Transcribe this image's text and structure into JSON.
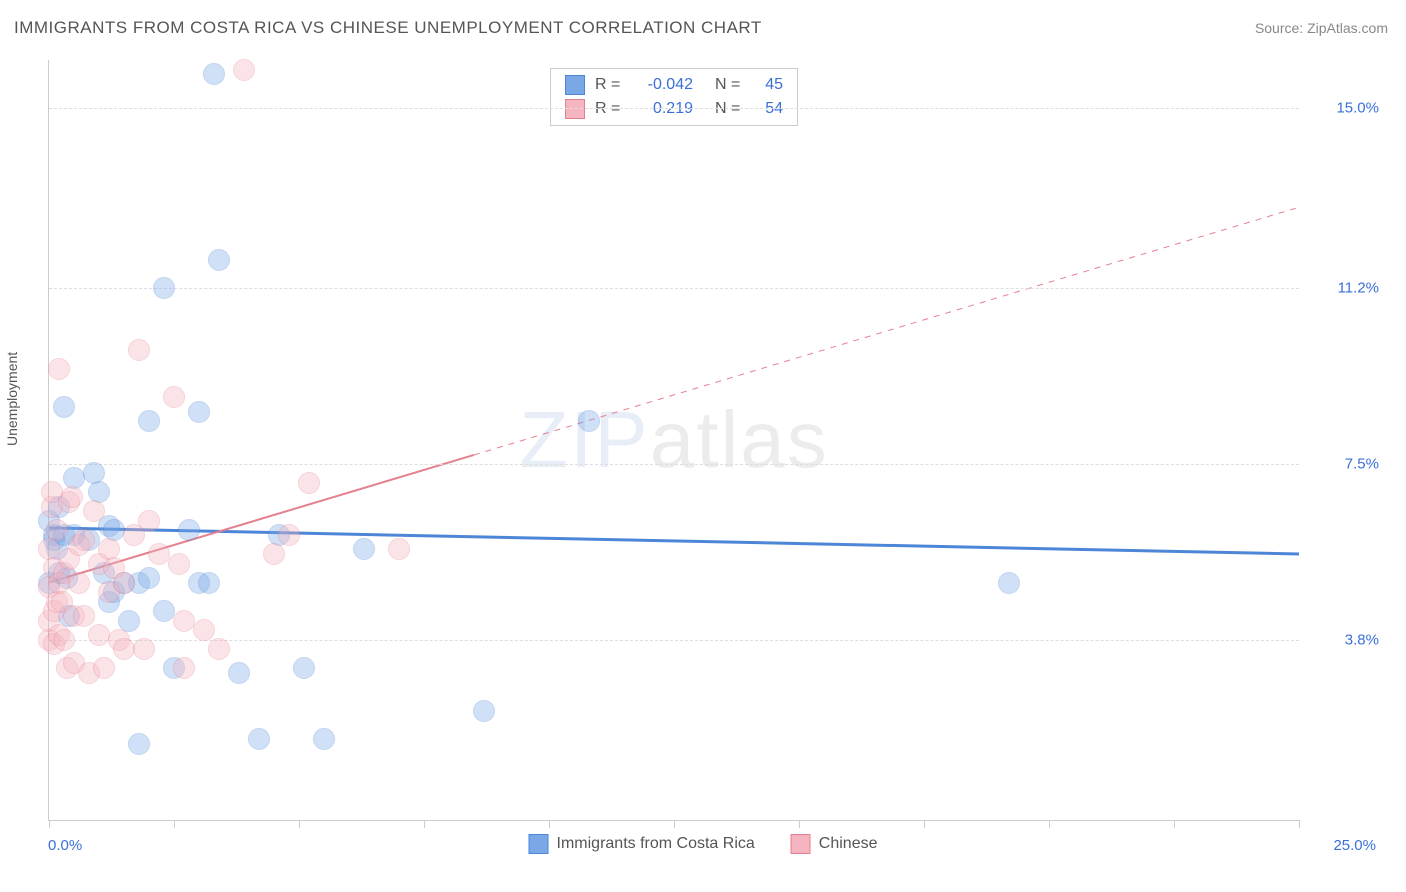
{
  "title": "IMMIGRANTS FROM COSTA RICA VS CHINESE UNEMPLOYMENT CORRELATION CHART",
  "source": "Source: ZipAtlas.com",
  "watermark": "ZIPatlas",
  "chart": {
    "type": "scatter",
    "xlim": [
      0.0,
      25.0
    ],
    "ylim": [
      0.0,
      16.0
    ],
    "x_left_label": "0.0%",
    "x_right_label": "25.0%",
    "x_ticks": [
      0,
      2.5,
      5,
      7.5,
      10,
      12.5,
      15,
      17.5,
      20,
      22.5,
      25
    ],
    "y_gridlines": [
      {
        "y": 3.8,
        "label": "3.8%"
      },
      {
        "y": 7.5,
        "label": "7.5%"
      },
      {
        "y": 11.2,
        "label": "11.2%"
      },
      {
        "y": 15.0,
        "label": "15.0%"
      }
    ],
    "ylabel": "Unemployment",
    "grid_color": "#dddddd",
    "axis_color": "#cccccc",
    "tick_label_color": "#3a6fd8",
    "marker_radius": 10,
    "marker_opacity": 0.35,
    "background_color": "#ffffff",
    "series": [
      {
        "name": "Immigrants from Costa Rica",
        "color": "#7aa8e6",
        "border": "#4d86d6",
        "R": "-0.042",
        "N": "45",
        "trend": {
          "x1": 0.0,
          "y1": 6.15,
          "x2": 25.0,
          "y2": 5.6,
          "dash_from_x": null,
          "width": 3
        },
        "points": [
          [
            0.0,
            5.0
          ],
          [
            0.0,
            6.3
          ],
          [
            0.1,
            6.0
          ],
          [
            0.1,
            5.9
          ],
          [
            0.15,
            5.7
          ],
          [
            0.2,
            6.6
          ],
          [
            0.2,
            5.2
          ],
          [
            0.3,
            6.0
          ],
          [
            0.3,
            8.7
          ],
          [
            0.35,
            5.1
          ],
          [
            0.4,
            4.3
          ],
          [
            0.5,
            7.2
          ],
          [
            0.5,
            6.0
          ],
          [
            0.8,
            5.9
          ],
          [
            0.9,
            7.3
          ],
          [
            1.0,
            6.9
          ],
          [
            1.1,
            5.2
          ],
          [
            1.2,
            6.2
          ],
          [
            1.2,
            4.6
          ],
          [
            1.3,
            6.1
          ],
          [
            1.3,
            4.8
          ],
          [
            1.5,
            5.0
          ],
          [
            1.6,
            4.2
          ],
          [
            1.8,
            1.6
          ],
          [
            1.8,
            5.0
          ],
          [
            2.0,
            8.4
          ],
          [
            2.0,
            5.1
          ],
          [
            2.3,
            4.4
          ],
          [
            2.3,
            11.2
          ],
          [
            2.5,
            3.2
          ],
          [
            2.8,
            6.1
          ],
          [
            3.0,
            8.6
          ],
          [
            3.0,
            5.0
          ],
          [
            3.2,
            5.0
          ],
          [
            3.3,
            15.7
          ],
          [
            3.4,
            11.8
          ],
          [
            3.8,
            3.1
          ],
          [
            4.2,
            1.7
          ],
          [
            4.6,
            6.0
          ],
          [
            5.1,
            3.2
          ],
          [
            5.5,
            1.7
          ],
          [
            6.3,
            5.7
          ],
          [
            8.7,
            2.3
          ],
          [
            10.8,
            8.4
          ],
          [
            19.2,
            5.0
          ]
        ]
      },
      {
        "name": "Chinese",
        "color": "#f5b5c0",
        "border": "#e5808f",
        "R": "0.219",
        "N": "54",
        "trend": {
          "x1": 0.0,
          "y1": 5.0,
          "x2": 25.0,
          "y2": 12.9,
          "dash_from_x": 8.5,
          "width": 2
        },
        "points": [
          [
            0.0,
            3.8
          ],
          [
            0.0,
            4.9
          ],
          [
            0.0,
            4.2
          ],
          [
            0.0,
            5.7
          ],
          [
            0.05,
            6.6
          ],
          [
            0.05,
            6.9
          ],
          [
            0.1,
            4.4
          ],
          [
            0.1,
            5.3
          ],
          [
            0.1,
            3.7
          ],
          [
            0.15,
            4.6
          ],
          [
            0.15,
            6.1
          ],
          [
            0.2,
            9.5
          ],
          [
            0.2,
            3.9
          ],
          [
            0.2,
            5.0
          ],
          [
            0.25,
            4.6
          ],
          [
            0.3,
            3.8
          ],
          [
            0.3,
            5.2
          ],
          [
            0.35,
            3.2
          ],
          [
            0.4,
            6.7
          ],
          [
            0.4,
            5.5
          ],
          [
            0.45,
            6.8
          ],
          [
            0.5,
            3.3
          ],
          [
            0.5,
            4.3
          ],
          [
            0.6,
            5.0
          ],
          [
            0.6,
            5.8
          ],
          [
            0.7,
            4.3
          ],
          [
            0.7,
            5.9
          ],
          [
            0.8,
            3.1
          ],
          [
            0.9,
            6.5
          ],
          [
            1.0,
            3.9
          ],
          [
            1.0,
            5.4
          ],
          [
            1.1,
            3.2
          ],
          [
            1.2,
            5.7
          ],
          [
            1.2,
            4.8
          ],
          [
            1.3,
            5.3
          ],
          [
            1.4,
            3.8
          ],
          [
            1.5,
            5.0
          ],
          [
            1.5,
            3.6
          ],
          [
            1.7,
            6.0
          ],
          [
            1.8,
            9.9
          ],
          [
            1.9,
            3.6
          ],
          [
            2.0,
            6.3
          ],
          [
            2.2,
            5.6
          ],
          [
            2.5,
            8.9
          ],
          [
            2.6,
            5.4
          ],
          [
            2.7,
            3.2
          ],
          [
            2.7,
            4.2
          ],
          [
            3.1,
            4.0
          ],
          [
            3.4,
            3.6
          ],
          [
            3.9,
            15.8
          ],
          [
            4.5,
            5.6
          ],
          [
            4.8,
            6.0
          ],
          [
            5.2,
            7.1
          ],
          [
            7.0,
            5.7
          ]
        ]
      }
    ],
    "legend_top_labels": {
      "R": "R =",
      "N": "N ="
    },
    "bottom_legend": [
      {
        "label": "Immigrants from Costa Rica",
        "color": "#7aa8e6",
        "border": "#4d86d6"
      },
      {
        "label": "Chinese",
        "color": "#f5b5c0",
        "border": "#e5808f"
      }
    ]
  }
}
